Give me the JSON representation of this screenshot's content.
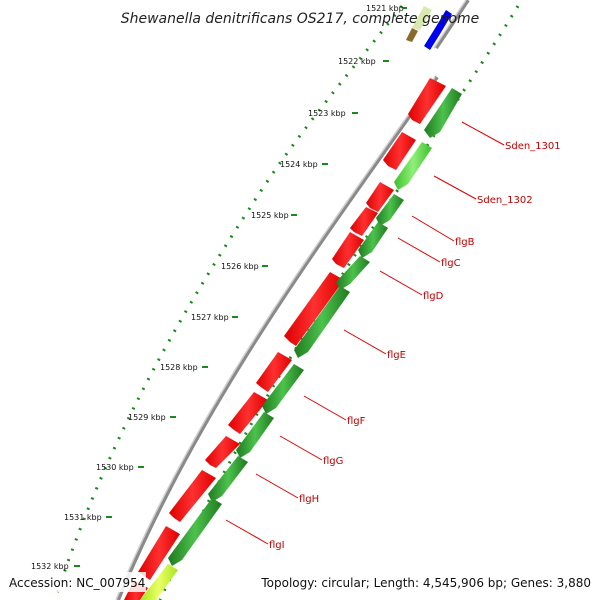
{
  "title": "Shewanella denitrificans OS217, complete genome",
  "footer": {
    "accession": "Accession: NC_007954",
    "topology": "Topology: circular; Length: 4,545,906 bp; Genes: 3,880"
  },
  "kbp_ticks": [
    "1521 kbp",
    "1522 kbp",
    "1523 kbp",
    "1524 kbp",
    "1525 kbp",
    "1526 kbp",
    "1527 kbp",
    "1528 kbp",
    "1529 kbp",
    "1530 kbp",
    "1531 kbp",
    "1532 kbp"
  ],
  "gene_labels": [
    "Sden_1301",
    "Sden_1302",
    "flgB",
    "flgC",
    "flgD",
    "flgE",
    "flgF",
    "flgG",
    "flgH",
    "flgI"
  ],
  "colors": {
    "cds_red": "#ff0000",
    "gene_green": "#2e8b2e",
    "gene_light_green": "#55dd33",
    "gene_yellow_green": "#ccff33",
    "top_blue": "#0000ff",
    "backbone": "#888888",
    "gc_dots": "#1a8a1a",
    "label_red": "#c00000"
  }
}
